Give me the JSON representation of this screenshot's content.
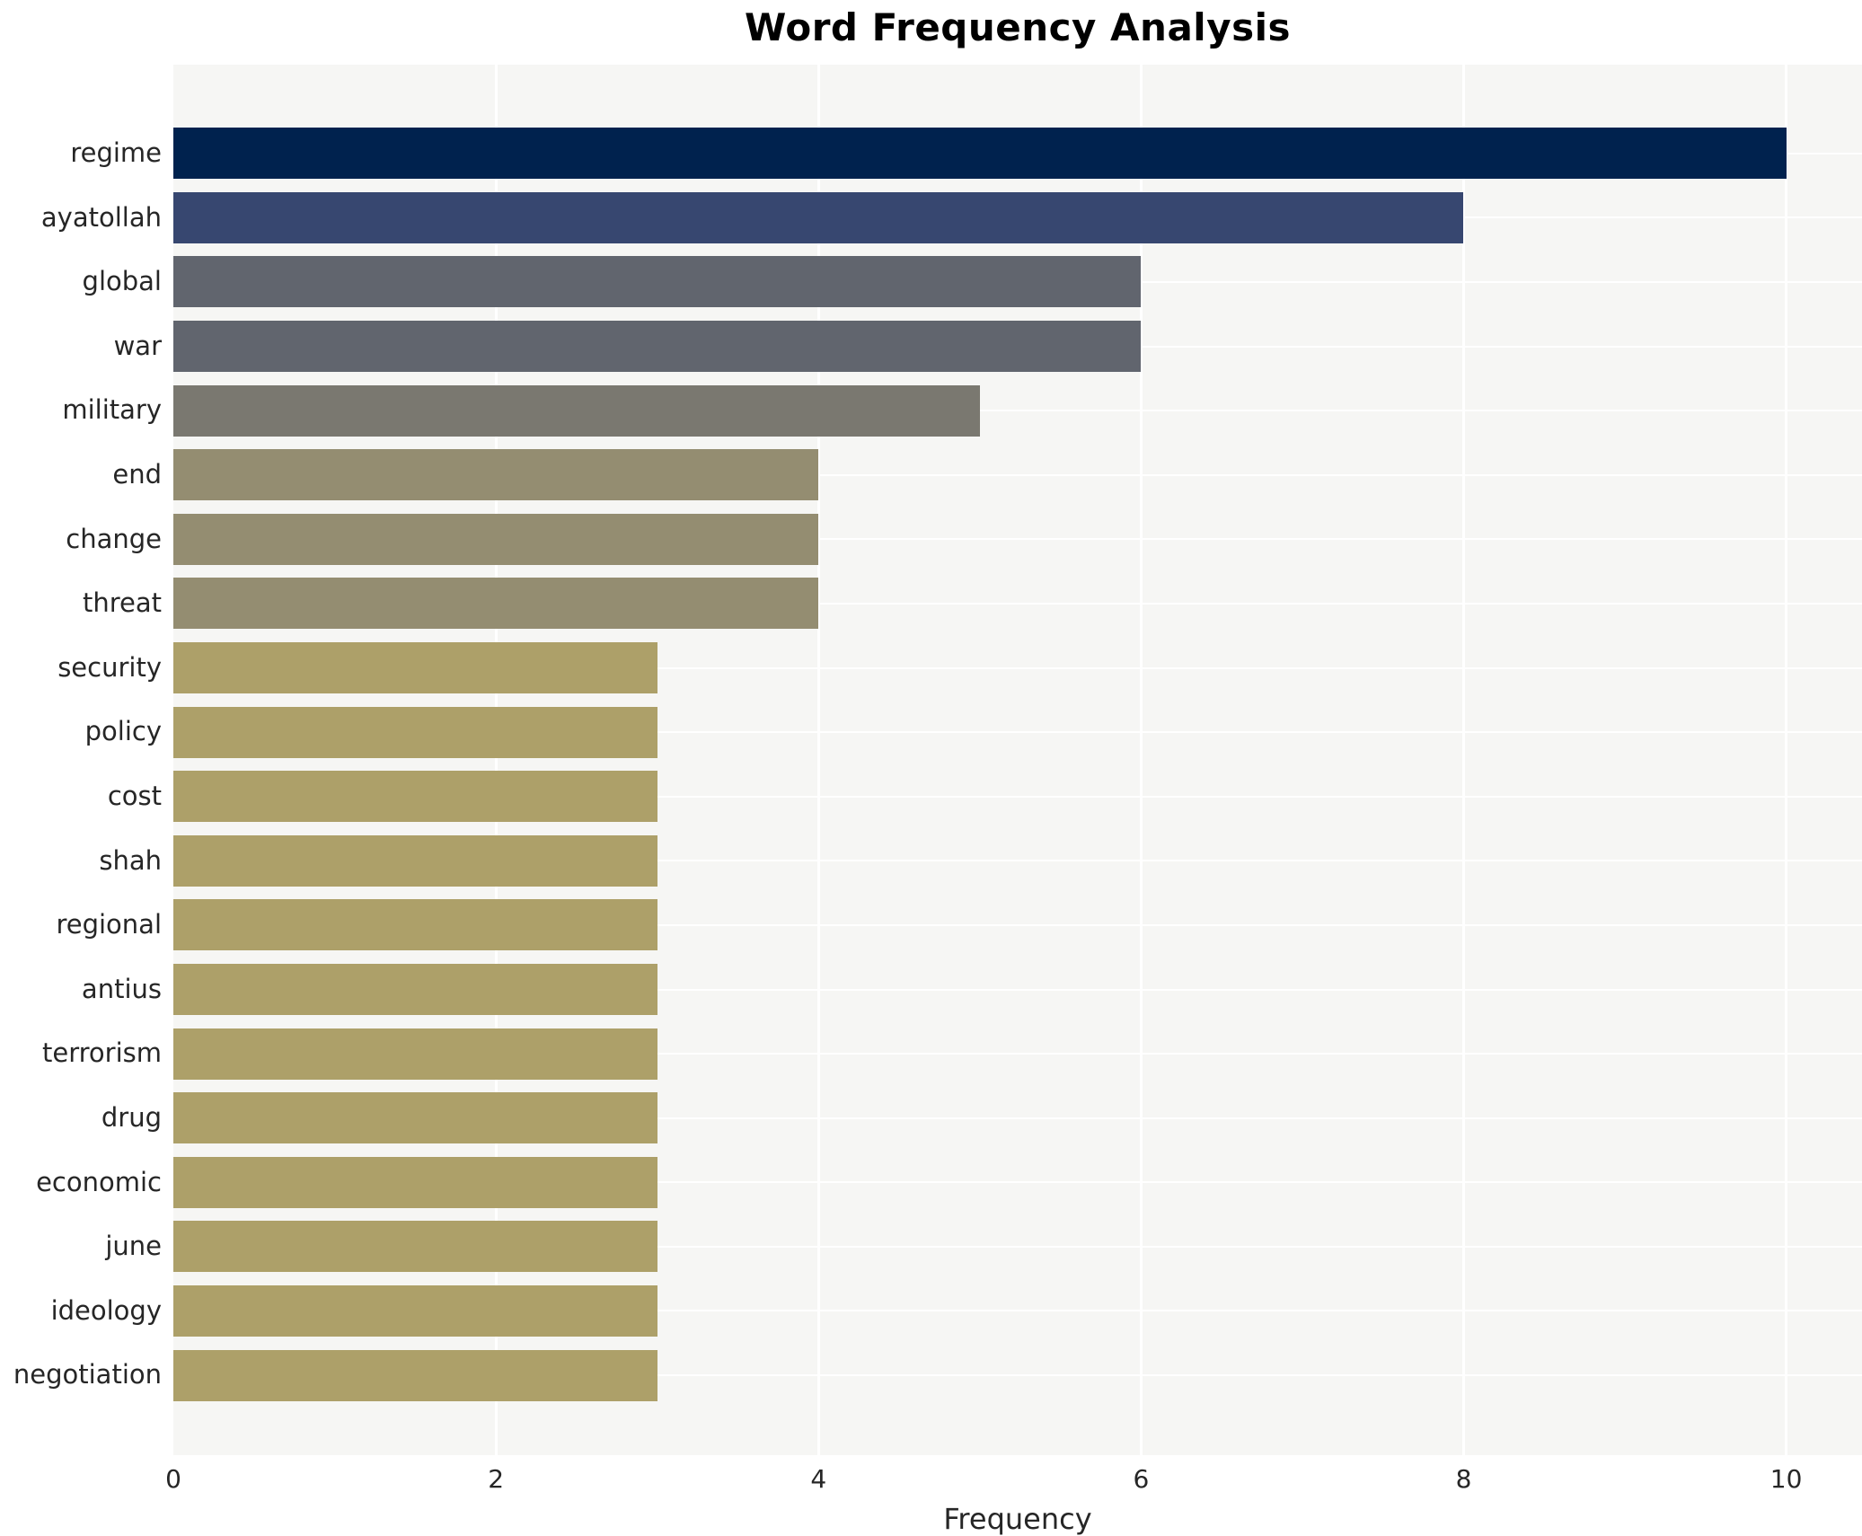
{
  "page": {
    "background": "#ffffff"
  },
  "chart_data": {
    "type": "bar",
    "orientation": "horizontal",
    "title": "Word Frequency Analysis",
    "xlabel": "Frequency",
    "ylabel": "",
    "categories": [
      "regime",
      "ayatollah",
      "global",
      "war",
      "military",
      "end",
      "change",
      "threat",
      "security",
      "policy",
      "cost",
      "shah",
      "regional",
      "antius",
      "terrorism",
      "drug",
      "economic",
      "june",
      "ideology",
      "negotiation"
    ],
    "values": [
      10,
      8,
      6,
      6,
      5,
      4,
      4,
      4,
      3,
      3,
      3,
      3,
      3,
      3,
      3,
      3,
      3,
      3,
      3,
      3
    ],
    "bar_colors": [
      "#00224e",
      "#374770",
      "#61656e",
      "#61656e",
      "#7a7870",
      "#948d71",
      "#948d71",
      "#948d71",
      "#ada069",
      "#ada069",
      "#ada069",
      "#ada069",
      "#ada069",
      "#ada069",
      "#ada069",
      "#ada069",
      "#ada069",
      "#ada069",
      "#ada069",
      "#ada069"
    ],
    "x_tick_labels": [
      "0",
      "2",
      "4",
      "6",
      "8",
      "10"
    ],
    "x_tick_values": [
      0,
      2,
      4,
      6,
      8,
      10
    ],
    "xlim": [
      0,
      10.47
    ],
    "grid": "on",
    "legend_position": "none",
    "plot_bg_color": "#f6f6f4",
    "grid_color": "#ffffff",
    "text_color": "#262626",
    "title_color": "#000000"
  }
}
